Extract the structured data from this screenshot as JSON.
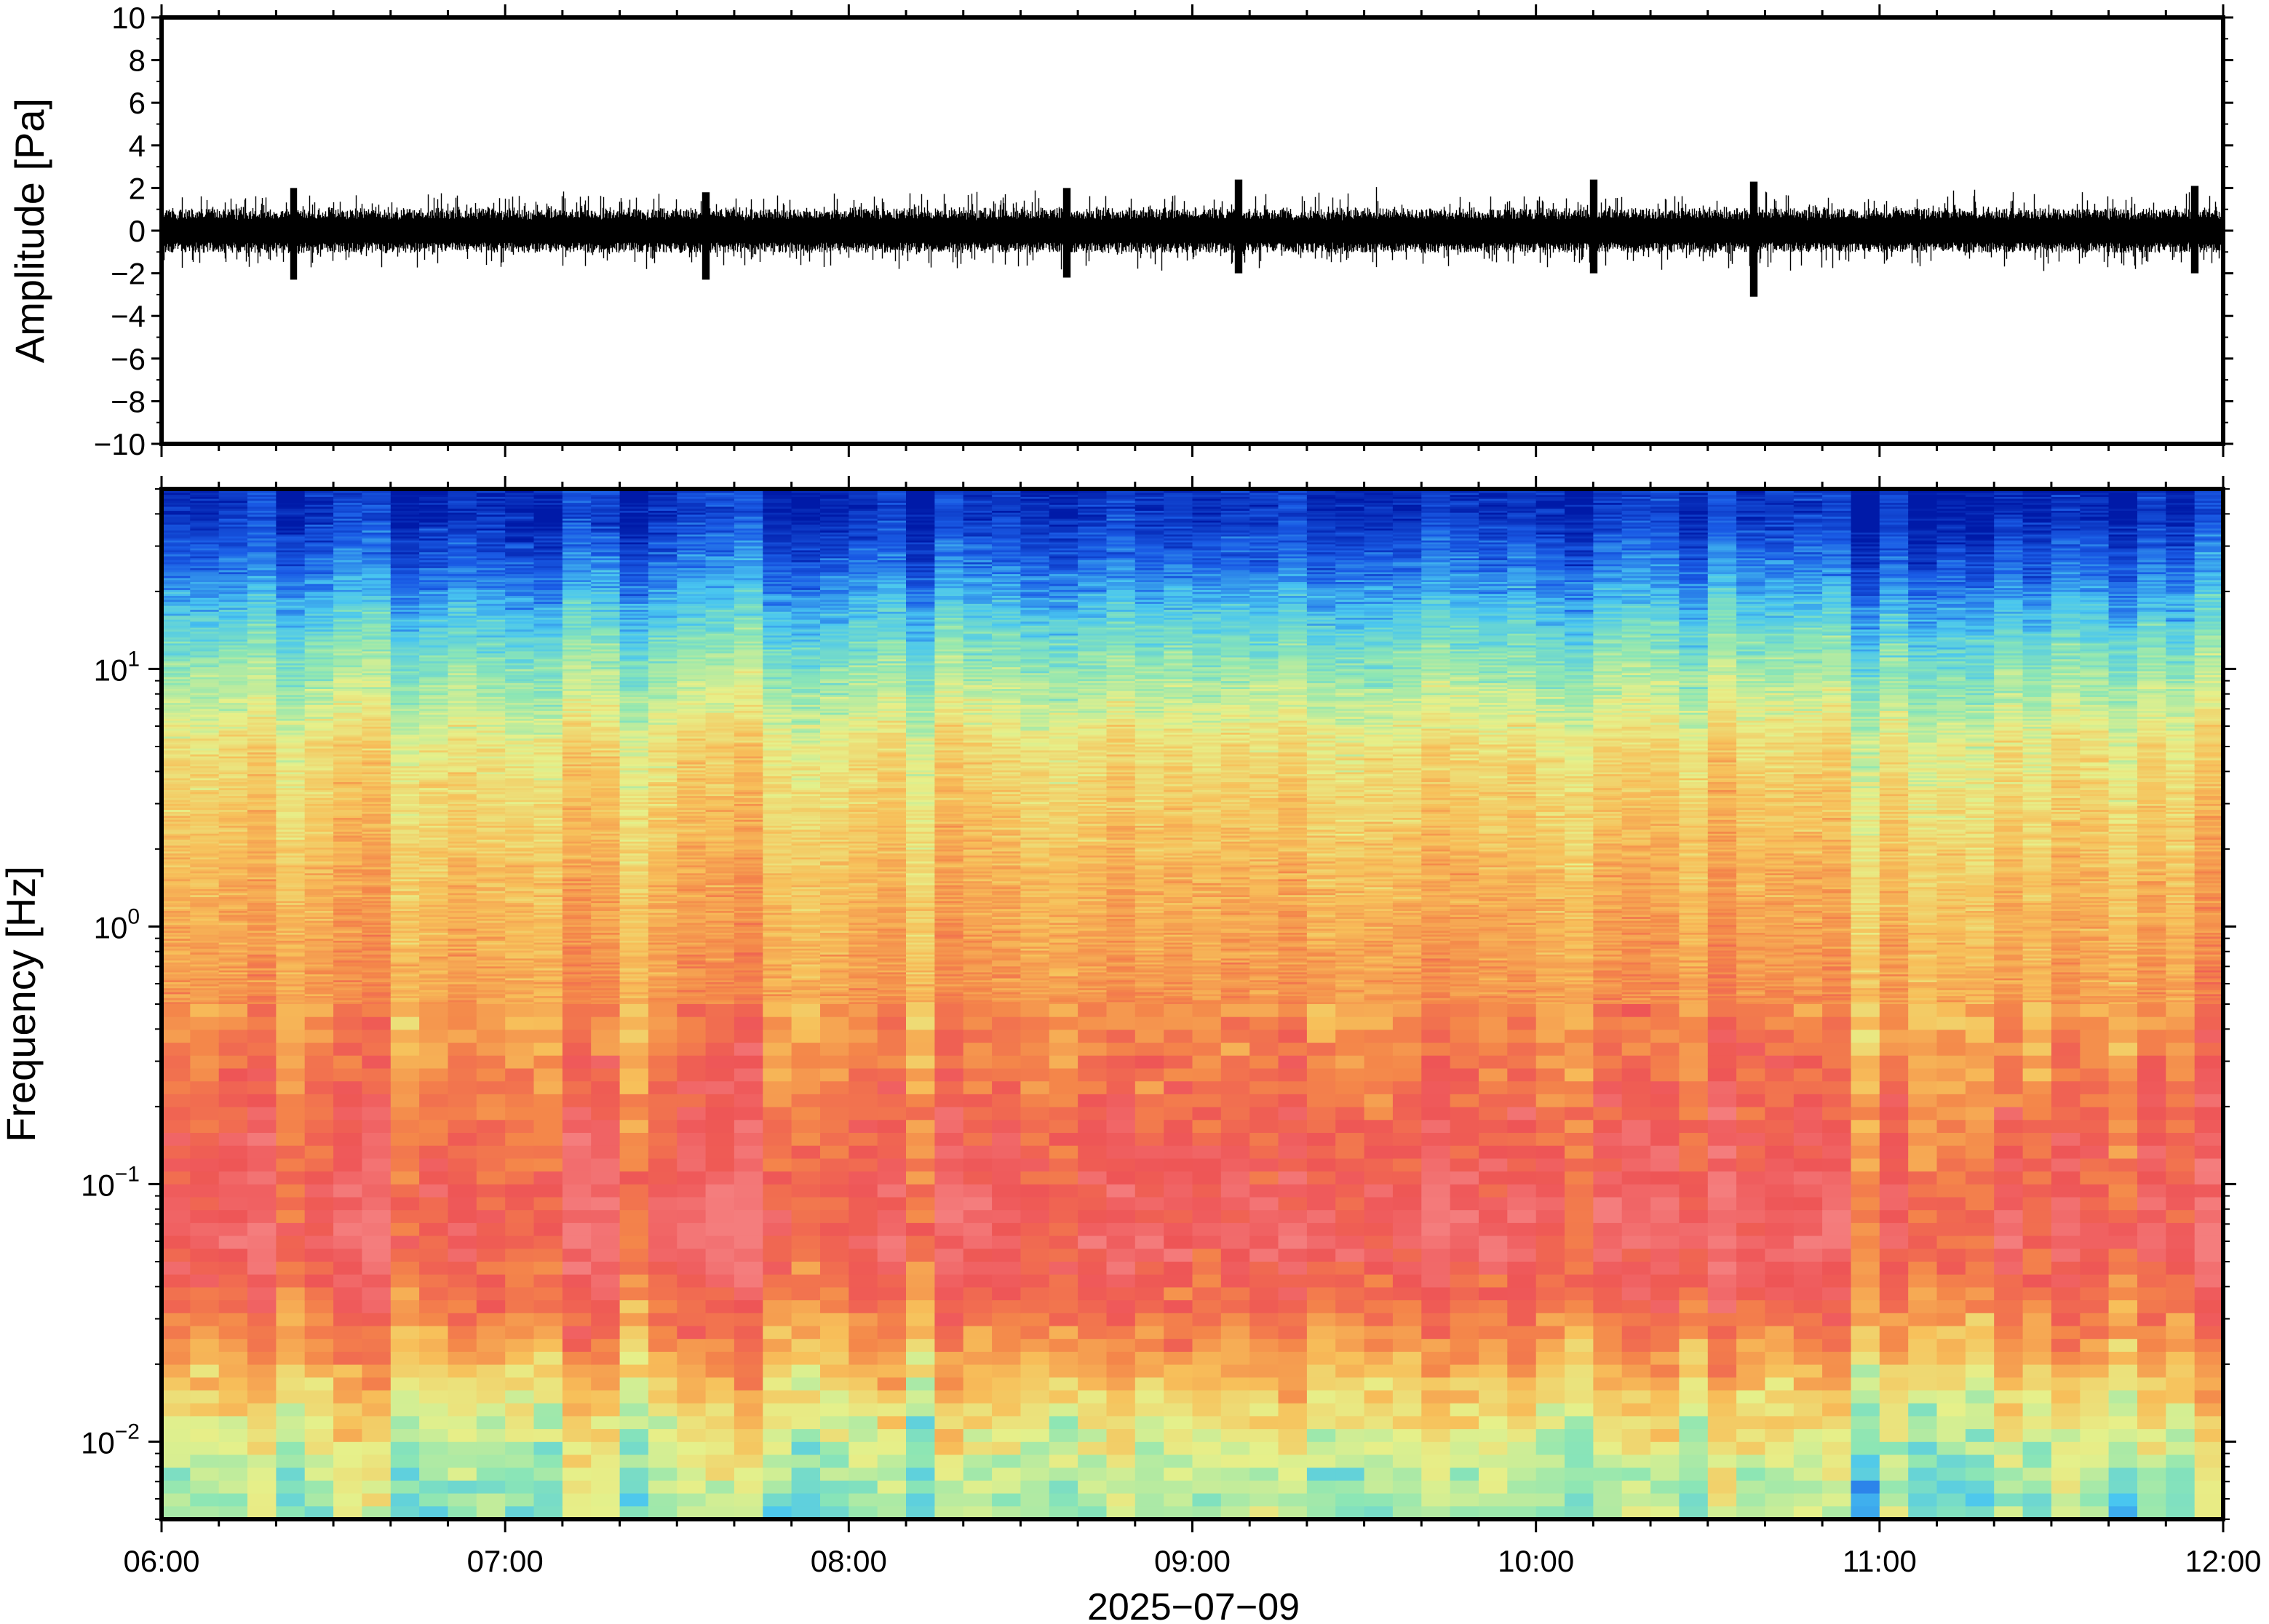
{
  "chart_data": [
    {
      "type": "line",
      "panel": "waveform",
      "ylabel": "Amplitude [Pa]",
      "xlabel": "",
      "ylim": [
        -10,
        10
      ],
      "y_ticks": [
        10,
        8,
        6,
        4,
        2,
        0,
        -2,
        -4,
        -6,
        -8,
        -10
      ],
      "y_tick_labels": [
        "10",
        "8",
        "6",
        "4",
        "2",
        "0",
        "−2",
        "−4",
        "−6",
        "−8",
        "−10"
      ],
      "x_range": [
        "06:00",
        "12:00"
      ],
      "grid": false,
      "noise_envelope": {
        "description_units": "Pa",
        "typical_amplitude": 0.8,
        "peaks": [
          {
            "time": "06:23",
            "min": -2.3,
            "max": 2.0
          },
          {
            "time": "07:35",
            "min": -2.3,
            "max": 1.8
          },
          {
            "time": "08:38",
            "min": -2.2,
            "max": 2.0
          },
          {
            "time": "09:08",
            "min": -2.0,
            "max": 2.4
          },
          {
            "time": "10:10",
            "min": -2.0,
            "max": 2.4
          },
          {
            "time": "10:38",
            "min": -3.1,
            "max": 2.3
          },
          {
            "time": "11:55",
            "min": -2.0,
            "max": 2.1
          }
        ]
      }
    },
    {
      "type": "heatmap",
      "panel": "spectrogram",
      "ylabel": "Frequency [Hz]",
      "xlabel": "2025−07−09",
      "y_scale": "log",
      "ylim": [
        0.005,
        50
      ],
      "y_ticks": [
        {
          "value": 10,
          "base": "10",
          "exp": "1"
        },
        {
          "value": 1,
          "base": "10",
          "exp": "0"
        },
        {
          "value": 0.1,
          "base": "10",
          "exp": "−1"
        },
        {
          "value": 0.01,
          "base": "10",
          "exp": "−2"
        }
      ],
      "x_ticks": [
        "06:00",
        "07:00",
        "08:00",
        "09:00",
        "10:00",
        "11:00",
        "12:00"
      ],
      "colormap": "jet-like (blue low power, red high power)",
      "color_stops": [
        "#001aa8",
        "#1a5ce6",
        "#49c6f0",
        "#8de6b4",
        "#e6f08a",
        "#f7c05a",
        "#f4874a",
        "#ee5556",
        "#f47d7d"
      ],
      "profile_by_frequency": [
        {
          "freq": 40,
          "level": 0.05
        },
        {
          "freq": 25,
          "level": 0.15
        },
        {
          "freq": 12,
          "level": 0.35
        },
        {
          "freq": 5,
          "level": 0.55
        },
        {
          "freq": 1.5,
          "level": 0.65
        },
        {
          "freq": 0.5,
          "level": 0.72
        },
        {
          "freq": 0.15,
          "level": 0.85
        },
        {
          "freq": 0.06,
          "level": 0.92
        },
        {
          "freq": 0.03,
          "level": 0.78
        },
        {
          "freq": 0.015,
          "level": 0.58
        },
        {
          "freq": 0.007,
          "level": 0.42
        }
      ]
    }
  ]
}
